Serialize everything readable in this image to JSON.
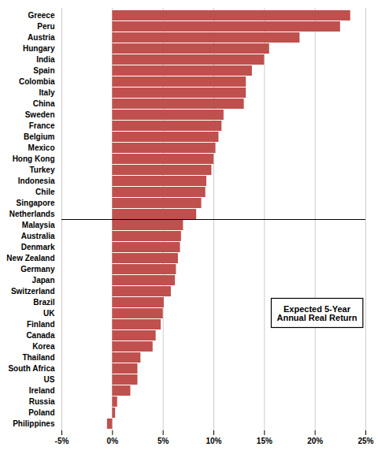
{
  "chart_data": {
    "type": "bar",
    "orientation": "horizontal",
    "categories": [
      "Greece",
      "Peru",
      "Austria",
      "Hungary",
      "India",
      "Spain",
      "Colombia",
      "Italy",
      "China",
      "Sweden",
      "France",
      "Belgium",
      "Mexico",
      "Hong Kong",
      "Turkey",
      "Indonesia",
      "Chile",
      "Singapore",
      "Netherlands",
      "Malaysia",
      "Australia",
      "Denmark",
      "New Zealand",
      "Germany",
      "Japan",
      "Switzerland",
      "Brazil",
      "UK",
      "Finland",
      "Canada",
      "Korea",
      "Thailand",
      "South Africa",
      "US",
      "Ireland",
      "Russia",
      "Poland",
      "Philippines"
    ],
    "values": [
      23.5,
      22.5,
      18.5,
      15.5,
      15.0,
      13.8,
      13.2,
      13.2,
      13.0,
      11.0,
      10.8,
      10.5,
      10.2,
      10.0,
      9.8,
      9.3,
      9.2,
      8.8,
      8.3,
      7.0,
      6.8,
      6.7,
      6.5,
      6.3,
      6.2,
      5.8,
      5.1,
      5.0,
      4.8,
      4.3,
      4.0,
      2.8,
      2.5,
      2.5,
      1.8,
      0.5,
      0.3,
      -0.5
    ],
    "color": "#C0504D",
    "annotation": "Expected 5-Year\nAnnual Real Return",
    "xlim": [
      -5,
      25
    ],
    "xticks": [
      {
        "value": -5,
        "label": "-5%"
      },
      {
        "value": 0,
        "label": "0%"
      },
      {
        "value": 5,
        "label": "5%"
      },
      {
        "value": 10,
        "label": "10%"
      },
      {
        "value": 15,
        "label": "15%"
      },
      {
        "value": 20,
        "label": "20%"
      },
      {
        "value": 25,
        "label": "25%"
      }
    ],
    "grid": true
  }
}
